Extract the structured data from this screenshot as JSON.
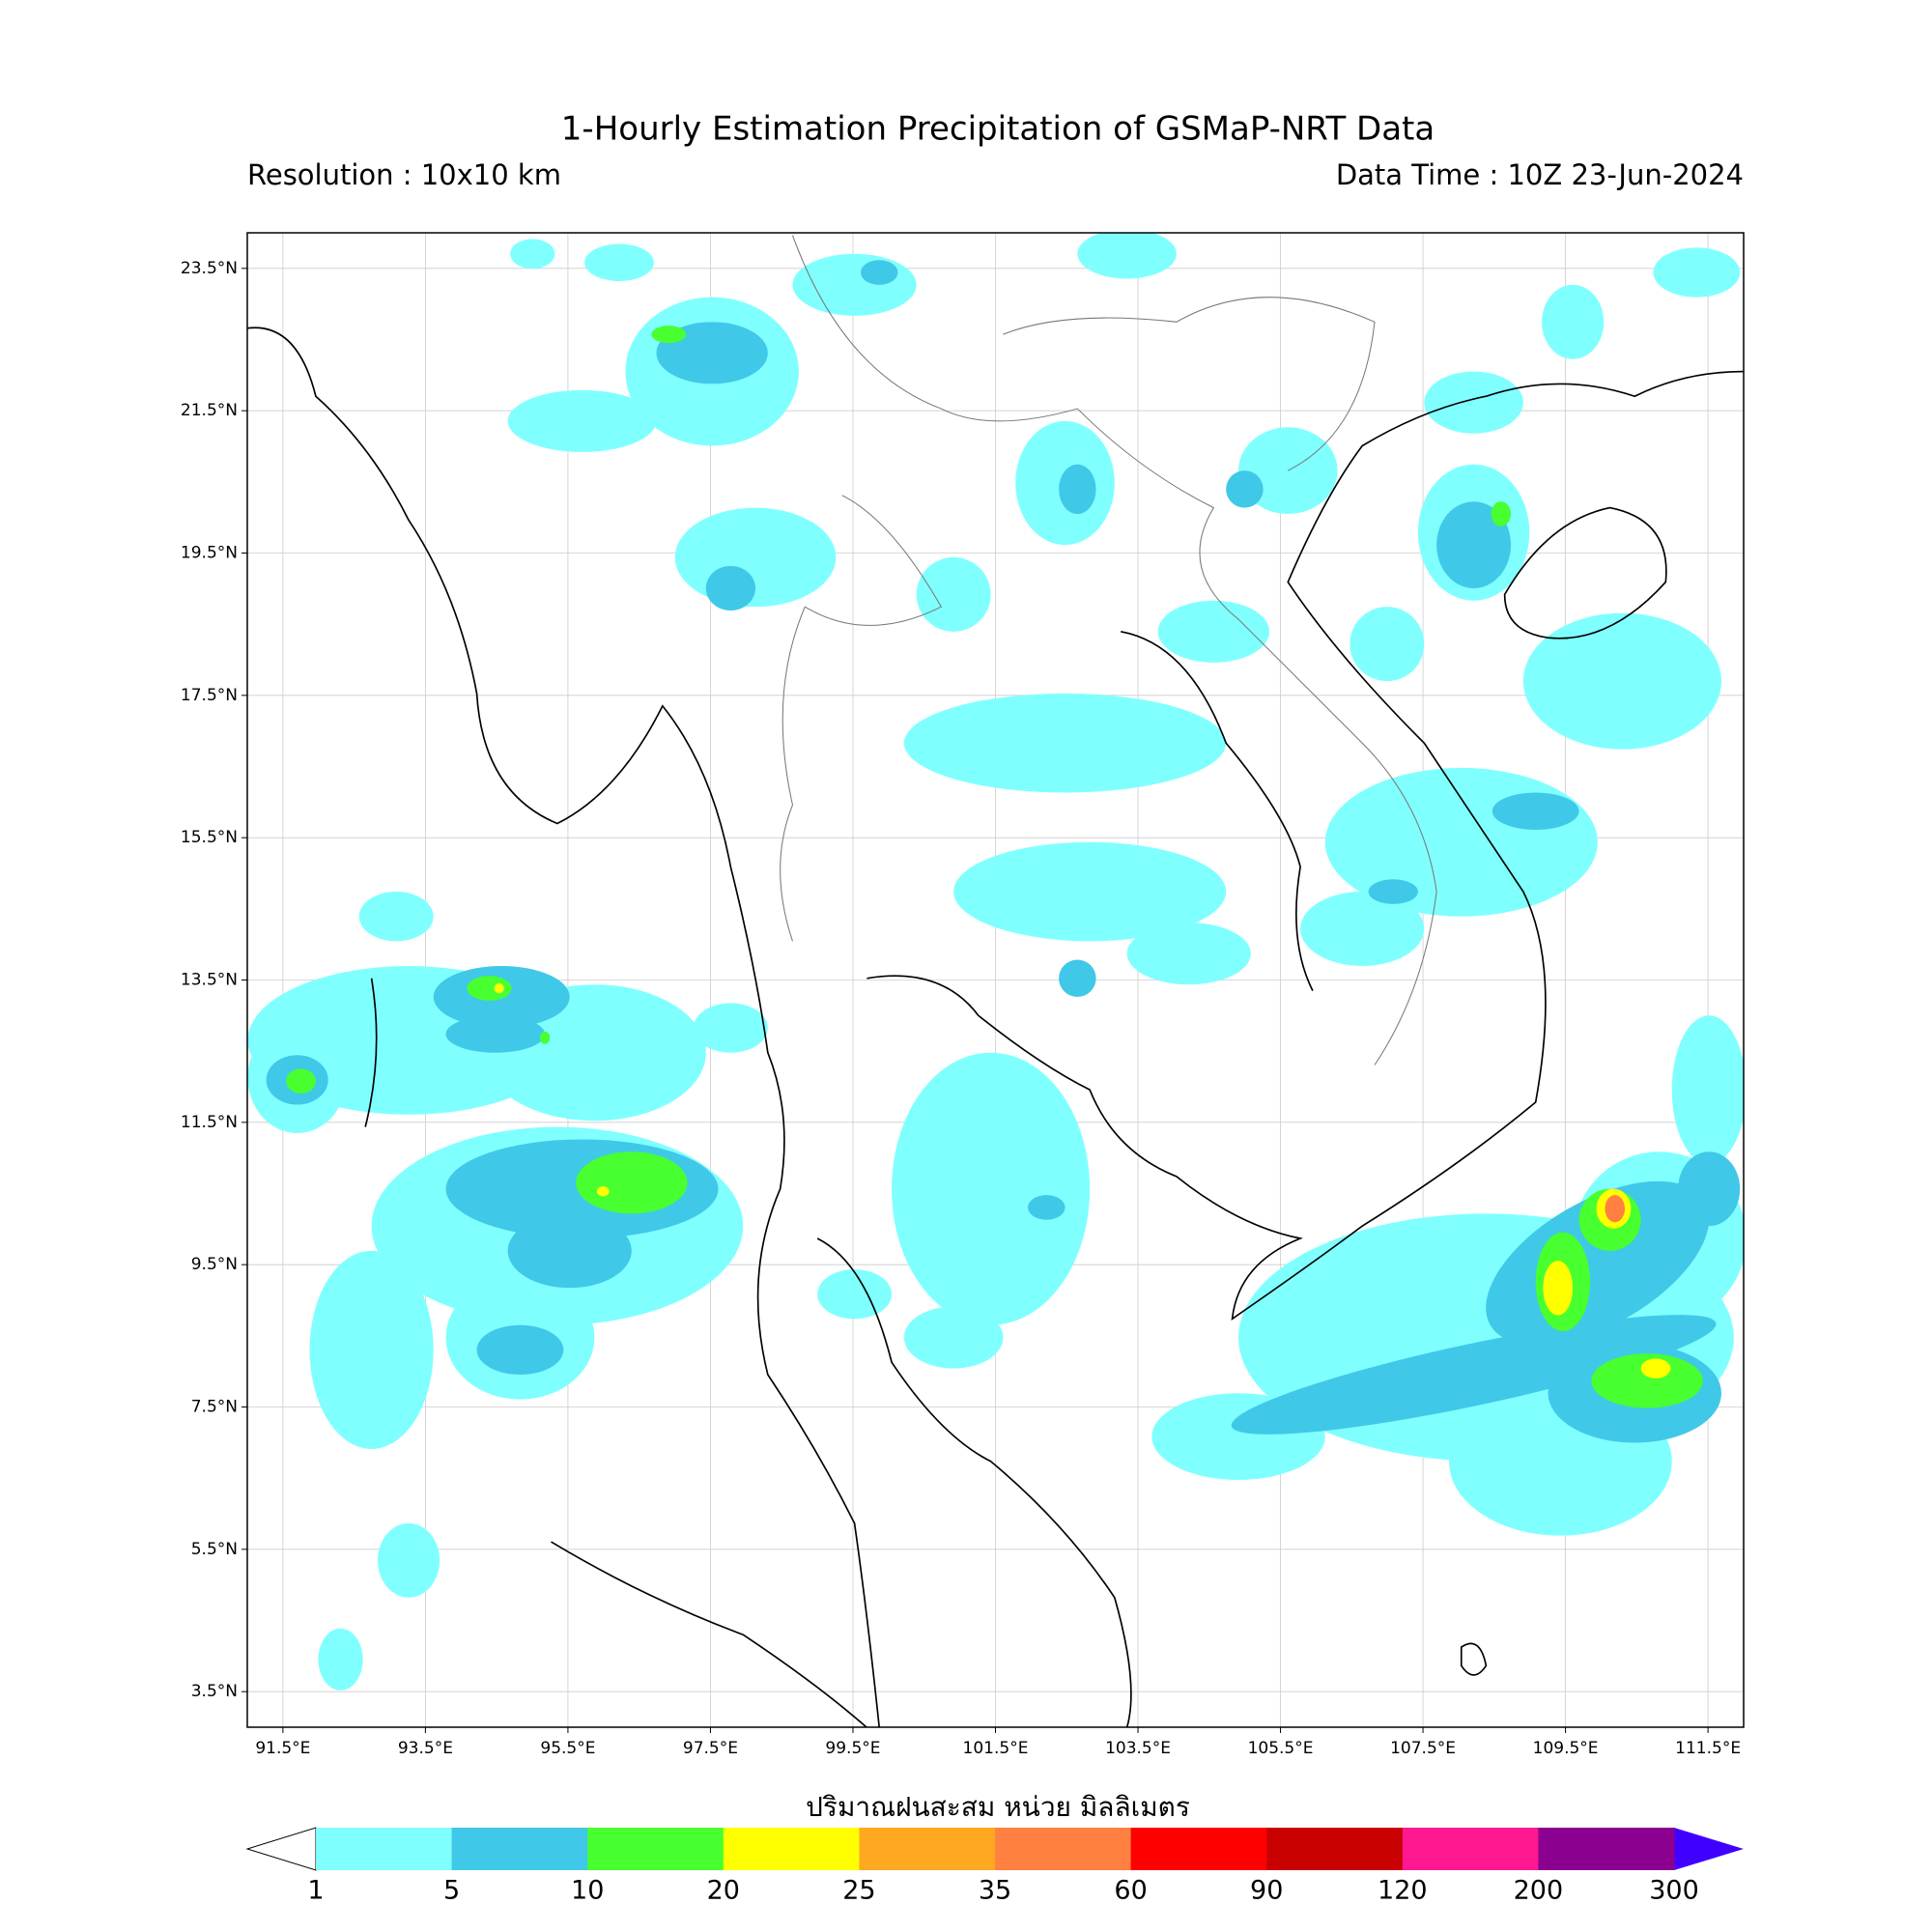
{
  "header": {
    "title": "1-Hourly Estimation Precipitation of GSMaP-NRT Data",
    "resolution": "Resolution : 10x10 km",
    "data_time": "Data Time : 10Z 23-Jun-2024"
  },
  "map": {
    "lonlim": [
      91,
      112
    ],
    "latlim": [
      3,
      24
    ],
    "lon_ticks": [
      {
        "value": 91.5,
        "label": "91.5°E"
      },
      {
        "value": 93.5,
        "label": "93.5°E"
      },
      {
        "value": 95.5,
        "label": "95.5°E"
      },
      {
        "value": 97.5,
        "label": "97.5°E"
      },
      {
        "value": 99.5,
        "label": "99.5°E"
      },
      {
        "value": 101.5,
        "label": "101.5°E"
      },
      {
        "value": 103.5,
        "label": "103.5°E"
      },
      {
        "value": 105.5,
        "label": "105.5°E"
      },
      {
        "value": 107.5,
        "label": "107.5°E"
      },
      {
        "value": 109.5,
        "label": "109.5°E"
      },
      {
        "value": 111.5,
        "label": "111.5°E"
      }
    ],
    "lat_ticks": [
      {
        "value": 23.5,
        "label": "23.5°N"
      },
      {
        "value": 21.5,
        "label": "21.5°N"
      },
      {
        "value": 19.5,
        "label": "19.5°N"
      },
      {
        "value": 17.5,
        "label": "17.5°N"
      },
      {
        "value": 15.5,
        "label": "15.5°N"
      },
      {
        "value": 13.5,
        "label": "13.5°N"
      },
      {
        "value": 11.5,
        "label": "11.5°N"
      },
      {
        "value": 9.5,
        "label": "9.5°N"
      },
      {
        "value": 7.5,
        "label": "7.5°N"
      },
      {
        "value": 5.5,
        "label": "5.5°N"
      },
      {
        "value": 3.5,
        "label": "3.5°N"
      }
    ]
  },
  "colorbar": {
    "title": "ปริมาณฝนสะสม หน่วย มิลลิเมตร",
    "levels": [
      1,
      5,
      10,
      20,
      25,
      35,
      60,
      90,
      120,
      200,
      300
    ],
    "colors": [
      "#80ffff",
      "#40c8e8",
      "#48ff30",
      "#ffff00",
      "#ffa820",
      "#ff8040",
      "#ff0000",
      "#c80000",
      "#ff1890",
      "#8c0090"
    ],
    "under_color": "#ffffff",
    "over_color": "#4000ff"
  }
}
